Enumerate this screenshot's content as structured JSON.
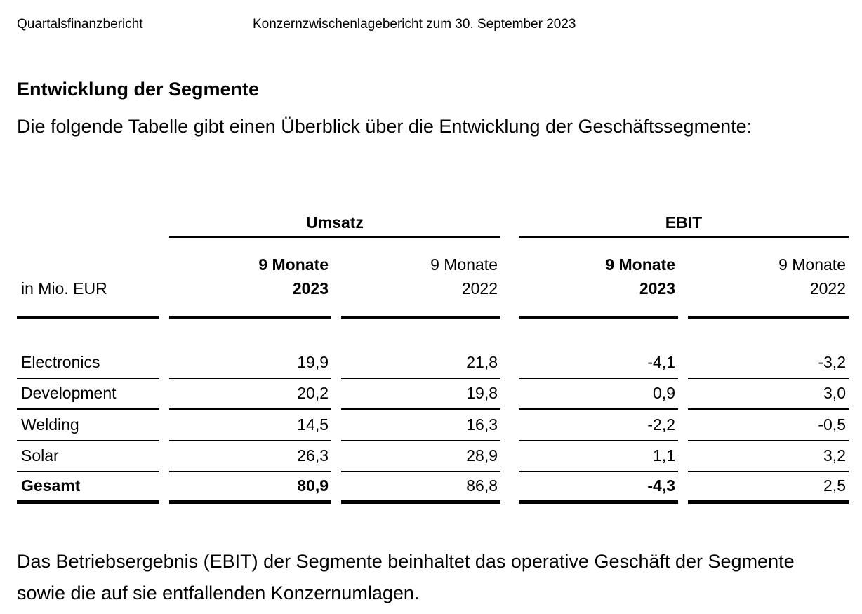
{
  "colors": {
    "text": "#000000",
    "background": "#ffffff",
    "rule": "#000000"
  },
  "page_header": {
    "left": "Quartalsfinanzbericht",
    "right": "Konzernzwischenlagebericht zum 30. September 2023"
  },
  "section": {
    "title": "Entwicklung der Segmente",
    "intro": "Die folgende Tabelle gibt einen Überblick über die Entwicklung der Geschäftssegmente:"
  },
  "table": {
    "unit_label": "in Mio. EUR",
    "groups": [
      {
        "label": "Umsatz"
      },
      {
        "label": "EBIT"
      }
    ],
    "column_headers": [
      {
        "line1": "9 Monate",
        "line2": "2023",
        "bold": true
      },
      {
        "line1": "9 Monate",
        "line2": "2022",
        "bold": false
      },
      {
        "line1": "9 Monate",
        "line2": "2023",
        "bold": true
      },
      {
        "line1": "9 Monate",
        "line2": "2022",
        "bold": false
      }
    ],
    "rows": [
      {
        "label": "Electronics",
        "values": [
          "19,9",
          "21,8",
          "-4,1",
          "-3,2"
        ],
        "is_total": false
      },
      {
        "label": "Development",
        "values": [
          "20,2",
          "19,8",
          "0,9",
          "3,0"
        ],
        "is_total": false
      },
      {
        "label": "Welding",
        "values": [
          "14,5",
          "16,3",
          "-2,2",
          "-0,5"
        ],
        "is_total": false
      },
      {
        "label": "Solar",
        "values": [
          "26,3",
          "28,9",
          "1,1",
          "3,2"
        ],
        "is_total": false
      },
      {
        "label": "Gesamt",
        "values": [
          "80,9",
          "86,8",
          "-4,3",
          "2,5"
        ],
        "is_total": true,
        "bold_value_columns": [
          0,
          2
        ]
      }
    ]
  },
  "footer_note": {
    "lines": [
      "Das Betriebsergebnis (EBIT) der Segmente beinhaltet das operative Geschäft der Segmente",
      "sowie die auf sie entfallenden Konzernumlagen."
    ]
  }
}
